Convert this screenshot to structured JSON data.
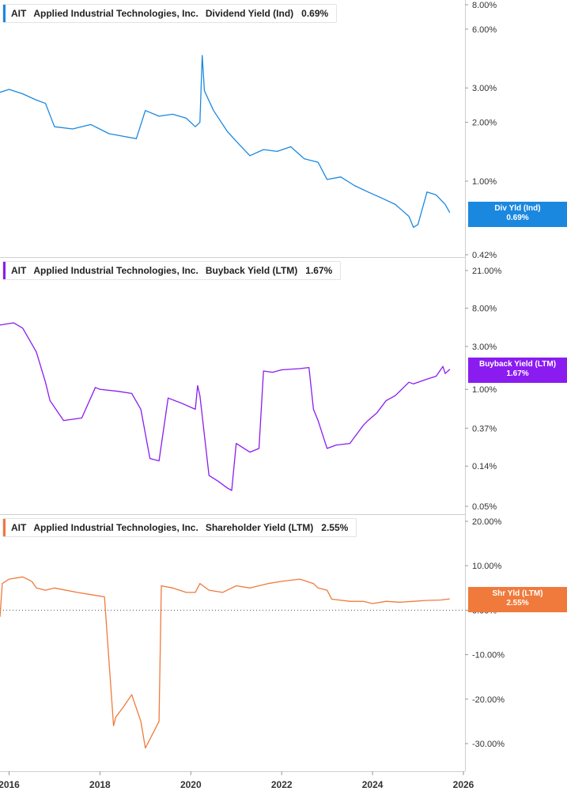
{
  "colors": {
    "dividend": "#1b88e0",
    "buyback": "#8a1cf0",
    "shareholder": "#f07a3c"
  },
  "panels": [
    {
      "ticker": "AIT",
      "company": "Applied Industrial Technologies, Inc.",
      "metric": "Dividend Yield (Ind)",
      "value": "0.69%",
      "tag_label": "Div Yld (Ind)",
      "tag_value": "0.69%"
    },
    {
      "ticker": "AIT",
      "company": "Applied Industrial Technologies, Inc.",
      "metric": "Buyback Yield (LTM)",
      "value": "1.67%",
      "tag_label": "Buyback Yield (LTM)",
      "tag_value": "1.67%"
    },
    {
      "ticker": "AIT",
      "company": "Applied Industrial Technologies, Inc.",
      "metric": "Shareholder Yield (LTM)",
      "value": "2.55%",
      "tag_label": "Shr Yld (LTM)",
      "tag_value": "2.55%"
    }
  ],
  "chart_data": [
    {
      "type": "line",
      "scale": "log",
      "series": [
        {
          "name": "Dividend Yield (Ind)",
          "x": [
            2015.8,
            2016.0,
            2016.3,
            2016.6,
            2016.8,
            2017.0,
            2017.4,
            2017.8,
            2018.2,
            2018.5,
            2018.8,
            2019.0,
            2019.3,
            2019.6,
            2019.9,
            2020.1,
            2020.2,
            2020.25,
            2020.3,
            2020.5,
            2020.8,
            2021.0,
            2021.3,
            2021.6,
            2021.9,
            2022.2,
            2022.5,
            2022.8,
            2023.0,
            2023.3,
            2023.6,
            2023.9,
            2024.2,
            2024.5,
            2024.8,
            2024.9,
            2025.0,
            2025.2,
            2025.4,
            2025.6,
            2025.7
          ],
          "values": [
            2.85,
            2.95,
            2.8,
            2.6,
            2.5,
            1.9,
            1.85,
            1.95,
            1.75,
            1.7,
            1.65,
            2.3,
            2.15,
            2.2,
            2.1,
            1.9,
            2.0,
            4.4,
            2.9,
            2.3,
            1.8,
            1.6,
            1.35,
            1.45,
            1.42,
            1.5,
            1.3,
            1.25,
            1.02,
            1.05,
            0.95,
            0.88,
            0.82,
            0.76,
            0.66,
            0.58,
            0.6,
            0.88,
            0.85,
            0.76,
            0.69
          ]
        }
      ],
      "yticks": [
        "8.00%",
        "6.00%",
        "3.00%",
        "2.00%",
        "1.00%",
        "0.42%"
      ],
      "ytick_values": [
        8.0,
        6.0,
        3.0,
        2.0,
        1.0,
        0.42
      ],
      "ylim": [
        0.4,
        8.2
      ],
      "last_value": "0.69%"
    },
    {
      "type": "line",
      "scale": "log",
      "series": [
        {
          "name": "Buyback Yield (LTM)",
          "x": [
            2015.8,
            2016.1,
            2016.3,
            2016.5,
            2016.6,
            2016.8,
            2016.9,
            2017.2,
            2017.6,
            2017.9,
            2018.0,
            2018.4,
            2018.7,
            2018.9,
            2019.1,
            2019.3,
            2019.5,
            2019.8,
            2020.1,
            2020.15,
            2020.2,
            2020.4,
            2020.6,
            2020.8,
            2020.9,
            2021.0,
            2021.3,
            2021.5,
            2021.6,
            2021.8,
            2022.0,
            2022.4,
            2022.6,
            2022.7,
            2022.8,
            2023.0,
            2023.2,
            2023.5,
            2023.8,
            2023.9,
            2024.1,
            2024.3,
            2024.5,
            2024.8,
            2024.9,
            2025.2,
            2025.4,
            2025.55,
            2025.6,
            2025.7
          ],
          "values": [
            5.2,
            5.5,
            4.8,
            3.2,
            2.6,
            1.2,
            0.75,
            0.45,
            0.48,
            1.05,
            1.0,
            0.95,
            0.9,
            0.6,
            0.17,
            0.16,
            0.8,
            0.7,
            0.6,
            1.1,
            0.85,
            0.11,
            0.095,
            0.08,
            0.075,
            0.25,
            0.2,
            0.22,
            1.6,
            1.55,
            1.65,
            1.7,
            1.75,
            0.6,
            0.45,
            0.22,
            0.24,
            0.25,
            0.4,
            0.45,
            0.55,
            0.75,
            0.85,
            1.2,
            1.15,
            1.3,
            1.4,
            1.8,
            1.5,
            1.67
          ]
        }
      ],
      "yticks": [
        "21.00%",
        "8.00%",
        "3.00%",
        "1.00%",
        "0.37%",
        "0.14%",
        "0.05%"
      ],
      "ytick_values": [
        21.0,
        8.0,
        3.0,
        1.0,
        0.37,
        0.14,
        0.05
      ],
      "ylim": [
        0.047,
        22.0
      ],
      "last_value": "1.67%"
    },
    {
      "type": "line",
      "scale": "linear",
      "series": [
        {
          "name": "Shareholder Yield (LTM)",
          "x": [
            2015.8,
            2015.85,
            2016.0,
            2016.3,
            2016.5,
            2016.6,
            2016.8,
            2017.0,
            2017.5,
            2017.8,
            2018.1,
            2018.3,
            2018.35,
            2018.5,
            2018.7,
            2018.9,
            2019.0,
            2019.1,
            2019.3,
            2019.35,
            2019.6,
            2019.9,
            2020.1,
            2020.2,
            2020.4,
            2020.7,
            2021.0,
            2021.3,
            2021.7,
            2022.0,
            2022.4,
            2022.7,
            2022.8,
            2023.0,
            2023.1,
            2023.5,
            2023.8,
            2024.0,
            2024.3,
            2024.6,
            2024.9,
            2025.2,
            2025.5,
            2025.7
          ],
          "values": [
            -1.5,
            6.0,
            7.0,
            7.5,
            6.5,
            5.0,
            4.5,
            5.0,
            4.0,
            3.5,
            3.0,
            -26.0,
            -24.0,
            -22.0,
            -19.0,
            -25.0,
            -31.0,
            -29.0,
            -25.0,
            5.5,
            5.0,
            4.0,
            4.0,
            6.0,
            4.5,
            4.0,
            5.5,
            5.0,
            6.0,
            6.5,
            7.0,
            6.0,
            5.0,
            4.5,
            2.5,
            2.0,
            2.0,
            1.5,
            2.0,
            1.8,
            2.0,
            2.2,
            2.3,
            2.55
          ]
        }
      ],
      "yticks": [
        "20.00%",
        "10.00%",
        "0.00%",
        "-10.00%",
        "-20.00%",
        "-30.00%"
      ],
      "ytick_values": [
        20,
        10,
        0,
        -10,
        -20,
        -30
      ],
      "ylim": [
        -34,
        21
      ],
      "last_value": "2.55%"
    }
  ],
  "x_axis": {
    "ticks": [
      "2016",
      "2018",
      "2020",
      "2022",
      "2024",
      "2026"
    ],
    "tick_values": [
      2016,
      2018,
      2020,
      2022,
      2024,
      2026
    ]
  }
}
